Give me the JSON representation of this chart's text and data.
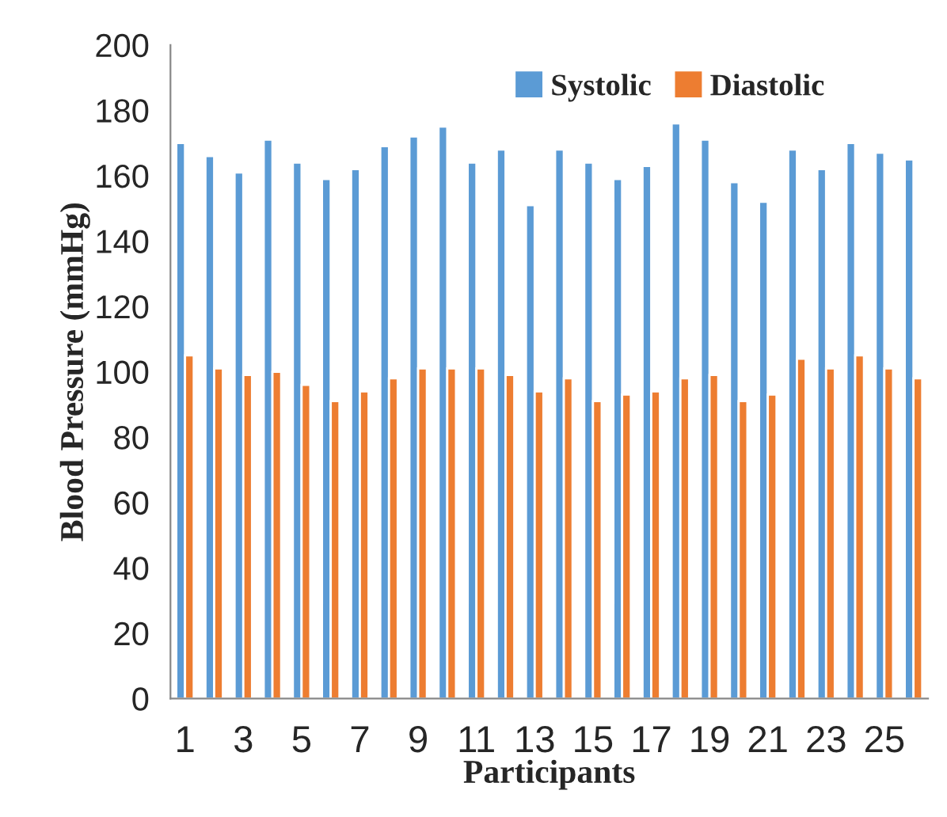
{
  "chart_data": {
    "type": "bar",
    "xlabel": "Participants",
    "ylabel": "Blood Pressure (mmHg)",
    "categories": [
      "1",
      null,
      "3",
      null,
      "5",
      null,
      "7",
      null,
      "9",
      null,
      "11",
      null,
      "13",
      null,
      "15",
      null,
      "17",
      null,
      "19",
      null,
      "21",
      null,
      "23",
      null,
      "25",
      null
    ],
    "series": [
      {
        "name": "Systolic",
        "color": "#5b9bd5",
        "values": [
          170,
          166,
          161,
          171,
          164,
          159,
          162,
          169,
          172,
          175,
          164,
          168,
          151,
          168,
          164,
          159,
          163,
          176,
          171,
          158,
          152,
          168,
          162,
          170,
          167,
          165
        ]
      },
      {
        "name": "Diastolic",
        "color": "#ed7d31",
        "values": [
          105,
          101,
          99,
          100,
          96,
          91,
          94,
          98,
          101,
          101,
          101,
          99,
          94,
          98,
          91,
          93,
          94,
          98,
          99,
          91,
          93,
          104,
          101,
          105,
          101,
          98
        ]
      }
    ],
    "ylim": [
      0,
      200
    ],
    "yticks": [
      0,
      20,
      40,
      60,
      80,
      100,
      120,
      140,
      160,
      180,
      200
    ],
    "grid": false,
    "legend": "top right"
  }
}
